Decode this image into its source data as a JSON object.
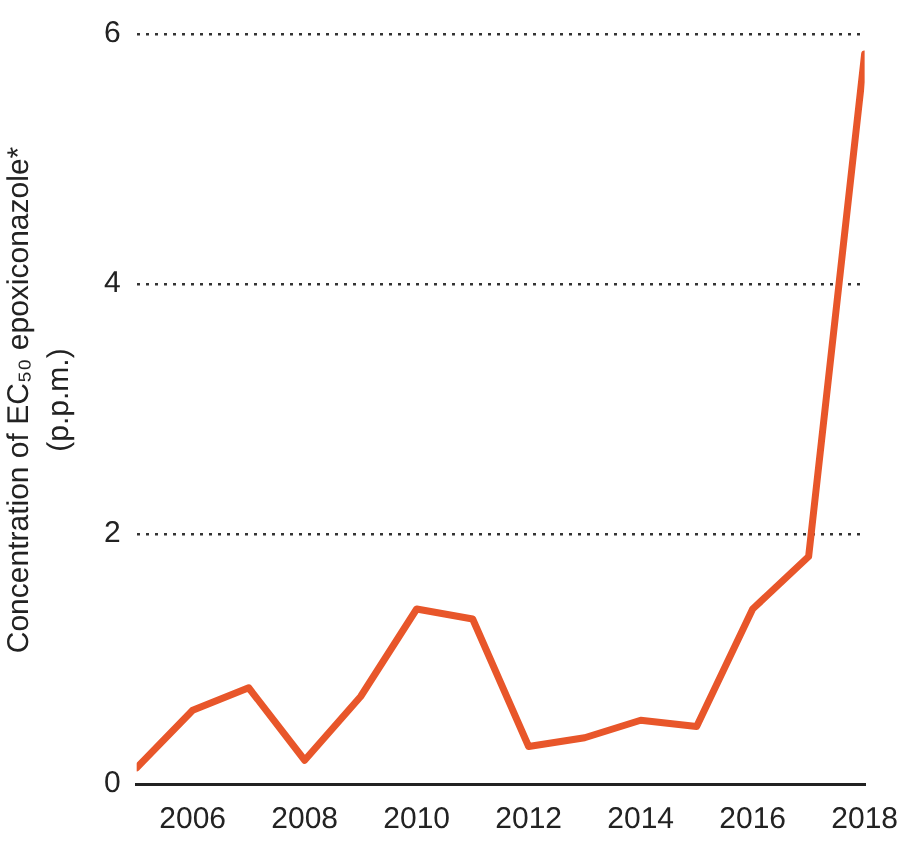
{
  "chart_data": {
    "type": "line",
    "ylabel": "Concentration of EC₅₀ epoxiconazole* (p.p.m.)",
    "x": [
      2005,
      2006,
      2007,
      2008,
      2009,
      2010,
      2011,
      2012,
      2013,
      2014,
      2015,
      2016,
      2017,
      2018
    ],
    "series": [
      {
        "color": "#e8562a",
        "values": [
          0.13,
          0.59,
          0.77,
          0.19,
          0.7,
          1.4,
          1.32,
          0.3,
          0.37,
          0.51,
          0.46,
          1.4,
          1.82,
          5.84
        ]
      }
    ],
    "xlim": [
      2005,
      2018
    ],
    "xticks": [
      2006,
      2008,
      2010,
      2012,
      2014,
      2016,
      2018
    ],
    "ylim": [
      0,
      6
    ],
    "yticks": [
      0,
      2,
      4,
      6
    ],
    "grid": "y",
    "legend": false,
    "marker": "none",
    "line_style": "solid"
  }
}
